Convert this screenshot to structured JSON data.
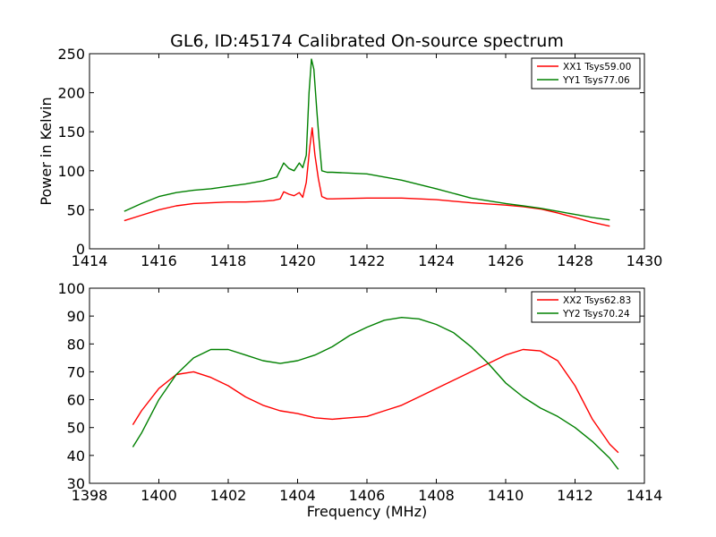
{
  "figure": {
    "title": "GL6, ID:45174 Calibrated On-source spectrum"
  },
  "chart_data": [
    {
      "type": "line",
      "title": "GL6, ID:45174 Calibrated On-source spectrum",
      "xlabel": "",
      "ylabel": "Power in Kelvin",
      "xlim": [
        1414,
        1430
      ],
      "ylim": [
        0,
        250
      ],
      "xticks": [
        1414,
        1416,
        1418,
        1420,
        1422,
        1424,
        1426,
        1428,
        1430
      ],
      "yticks": [
        0,
        50,
        100,
        150,
        200,
        250
      ],
      "grid": false,
      "legend_position": "top-right",
      "series": [
        {
          "name": "XX1 Tsys59.00",
          "color": "#ff0000",
          "x": [
            1415.0,
            1415.5,
            1416.0,
            1416.5,
            1417.0,
            1417.5,
            1418.0,
            1418.5,
            1419.0,
            1419.3,
            1419.5,
            1419.6,
            1419.75,
            1419.9,
            1420.05,
            1420.15,
            1420.25,
            1420.35,
            1420.42,
            1420.5,
            1420.6,
            1420.7,
            1420.85,
            1421.0,
            1422.0,
            1423.0,
            1424.0,
            1425.0,
            1426.0,
            1426.5,
            1427.0,
            1427.5,
            1428.0,
            1428.5,
            1429.0
          ],
          "y": [
            36,
            43,
            50,
            55,
            58,
            59,
            60,
            60,
            61,
            62,
            64,
            73,
            70,
            68,
            72,
            66,
            85,
            130,
            155,
            120,
            90,
            67,
            64,
            64,
            65,
            65,
            63,
            59,
            56,
            54,
            51,
            46,
            40,
            34,
            29
          ]
        },
        {
          "name": "YY1 Tsys77.06",
          "color": "#008000",
          "x": [
            1415.0,
            1415.5,
            1416.0,
            1416.5,
            1417.0,
            1417.5,
            1418.0,
            1418.5,
            1419.0,
            1419.4,
            1419.6,
            1419.75,
            1419.9,
            1420.05,
            1420.15,
            1420.25,
            1420.33,
            1420.4,
            1420.47,
            1420.55,
            1420.62,
            1420.7,
            1420.85,
            1421.0,
            1422.0,
            1423.0,
            1424.0,
            1425.0,
            1426.0,
            1426.5,
            1427.0,
            1427.5,
            1428.0,
            1428.5,
            1429.0
          ],
          "y": [
            48,
            58,
            67,
            72,
            75,
            77,
            80,
            83,
            87,
            92,
            110,
            103,
            100,
            110,
            104,
            120,
            200,
            243,
            230,
            180,
            140,
            100,
            98,
            98,
            96,
            88,
            77,
            65,
            58,
            55,
            52,
            48,
            44,
            40,
            37
          ]
        }
      ]
    },
    {
      "type": "line",
      "title": "",
      "xlabel": "Frequency (MHz)",
      "ylabel": "",
      "xlim": [
        1398,
        1414
      ],
      "ylim": [
        30,
        100
      ],
      "xticks": [
        1398,
        1400,
        1402,
        1404,
        1406,
        1408,
        1410,
        1412,
        1414
      ],
      "yticks": [
        30,
        40,
        50,
        60,
        70,
        80,
        90,
        100
      ],
      "grid": false,
      "legend_position": "top-right",
      "series": [
        {
          "name": "XX2 Tsys62.83",
          "color": "#ff0000",
          "x": [
            1399.25,
            1399.5,
            1400.0,
            1400.5,
            1401.0,
            1401.5,
            1402.0,
            1402.5,
            1403.0,
            1403.5,
            1404.0,
            1404.5,
            1405.0,
            1405.5,
            1406.0,
            1406.5,
            1407.0,
            1407.5,
            1408.0,
            1408.5,
            1409.0,
            1409.5,
            1410.0,
            1410.5,
            1411.0,
            1411.5,
            1412.0,
            1412.5,
            1413.0,
            1413.25
          ],
          "y": [
            51,
            56,
            64,
            69,
            70,
            68,
            65,
            61,
            58,
            56,
            55,
            53.5,
            53,
            53.5,
            54,
            56,
            58,
            61,
            64,
            67,
            70,
            73,
            76,
            78,
            77.5,
            74,
            65,
            53,
            44,
            41
          ]
        },
        {
          "name": "YY2 Tsys70.24",
          "color": "#008000",
          "x": [
            1399.25,
            1399.5,
            1400.0,
            1400.5,
            1401.0,
            1401.5,
            1402.0,
            1402.5,
            1403.0,
            1403.5,
            1404.0,
            1404.5,
            1405.0,
            1405.5,
            1406.0,
            1406.5,
            1407.0,
            1407.5,
            1408.0,
            1408.5,
            1409.0,
            1409.5,
            1410.0,
            1410.5,
            1411.0,
            1411.5,
            1412.0,
            1412.5,
            1413.0,
            1413.25
          ],
          "y": [
            43,
            48,
            60,
            69,
            75,
            78,
            78,
            76,
            74,
            73,
            74,
            76,
            79,
            83,
            86,
            88.5,
            89.5,
            89,
            87,
            84,
            79,
            73,
            66,
            61,
            57,
            54,
            50,
            45,
            39,
            35
          ]
        }
      ]
    }
  ]
}
